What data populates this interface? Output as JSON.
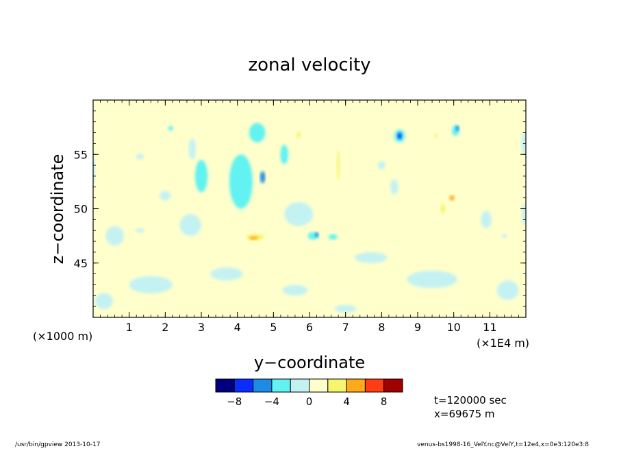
{
  "chart_data": {
    "type": "heatmap",
    "title": "zonal velocity",
    "xlabel": "y−coordinate",
    "ylabel": "z−coordinate",
    "x_scale_note": "(×1E4 m)",
    "y_scale_note": "(×1000 m)",
    "xlim": [
      0,
      12
    ],
    "ylim": [
      40,
      60
    ],
    "x_ticks": [
      1,
      2,
      3,
      4,
      5,
      6,
      7,
      8,
      9,
      10,
      11
    ],
    "y_ticks": [
      45,
      50,
      55
    ],
    "grid": false,
    "colorbar": {
      "levels": [
        -10,
        -8,
        -6,
        -4,
        -2,
        0,
        2,
        4,
        6,
        8,
        10
      ],
      "tick_labels": [
        "−8",
        "−4",
        "0",
        "4",
        "8"
      ],
      "tick_values": [
        -8,
        -4,
        0,
        4,
        8
      ],
      "colors": [
        "#00007f",
        "#0a2dff",
        "#1a8ce6",
        "#62f2f2",
        "#c4f2f2",
        "#ffffcc",
        "#f5f56e",
        "#ffaa1a",
        "#ff3c14",
        "#a00000"
      ]
    },
    "features": [
      {
        "y": 0.0,
        "z": 53.5,
        "w": 0.12,
        "h": 2.6,
        "value": -1
      },
      {
        "y": 0.85,
        "z": 58.2,
        "w": 0.35,
        "h": 0.6,
        "value": 1
      },
      {
        "y": 1.35,
        "z": 57.8,
        "w": 0.2,
        "h": 0.5,
        "value": 1
      },
      {
        "y": 1.3,
        "z": 54.8,
        "w": 0.22,
        "h": 0.55,
        "value": -1
      },
      {
        "y": 1.2,
        "z": 52.3,
        "w": 0.18,
        "h": 1.5,
        "value": 1
      },
      {
        "y": 1.3,
        "z": 51.4,
        "w": 0.18,
        "h": 0.6,
        "value": 1
      },
      {
        "y": 1.9,
        "z": 54.5,
        "w": 0.28,
        "h": 1.8,
        "value": 1
      },
      {
        "y": 2.15,
        "z": 57.4,
        "w": 0.15,
        "h": 0.45,
        "value": -3
      },
      {
        "y": 2.0,
        "z": 51.2,
        "w": 0.3,
        "h": 0.9,
        "value": -1
      },
      {
        "y": 1.3,
        "z": 48.0,
        "w": 0.25,
        "h": 0.4,
        "value": -1
      },
      {
        "y": 3.0,
        "z": 53.0,
        "w": 0.35,
        "h": 3.0,
        "value": -3
      },
      {
        "y": 2.75,
        "z": 55.5,
        "w": 0.2,
        "h": 2.0,
        "value": -1
      },
      {
        "y": 3.5,
        "z": 55.0,
        "w": 0.22,
        "h": 2.2,
        "value": 1
      },
      {
        "y": 3.55,
        "z": 48.2,
        "w": 0.45,
        "h": 0.9,
        "value": 1
      },
      {
        "y": 4.1,
        "z": 52.5,
        "w": 0.65,
        "h": 5.0,
        "value": -3
      },
      {
        "y": 4.55,
        "z": 57.0,
        "w": 0.45,
        "h": 1.8,
        "value": -3
      },
      {
        "y": 4.7,
        "z": 52.9,
        "w": 0.14,
        "h": 1.1,
        "value": -5
      },
      {
        "y": 4.05,
        "z": 57.5,
        "w": 0.18,
        "h": 1.4,
        "value": 1
      },
      {
        "y": 4.5,
        "z": 47.4,
        "w": 0.48,
        "h": 0.6,
        "value": 3
      },
      {
        "y": 4.45,
        "z": 47.3,
        "w": 0.25,
        "h": 0.3,
        "value": 5
      },
      {
        "y": 5.3,
        "z": 55.0,
        "w": 0.22,
        "h": 1.8,
        "value": -3
      },
      {
        "y": 5.7,
        "z": 56.8,
        "w": 0.12,
        "h": 0.6,
        "value": 3
      },
      {
        "y": 5.95,
        "z": 54.0,
        "w": 0.2,
        "h": 2.6,
        "value": 1
      },
      {
        "y": 6.1,
        "z": 47.5,
        "w": 0.3,
        "h": 0.7,
        "value": -3
      },
      {
        "y": 6.2,
        "z": 47.6,
        "w": 0.1,
        "h": 0.45,
        "value": -5
      },
      {
        "y": 6.65,
        "z": 47.4,
        "w": 0.25,
        "h": 0.5,
        "value": -3
      },
      {
        "y": 6.65,
        "z": 53.0,
        "w": 0.35,
        "h": 4.5,
        "value": 1
      },
      {
        "y": 6.8,
        "z": 54.0,
        "w": 0.08,
        "h": 2.8,
        "value": 3
      },
      {
        "y": 6.3,
        "z": 57.5,
        "w": 0.18,
        "h": 0.6,
        "value": 1
      },
      {
        "y": 7.45,
        "z": 55.8,
        "w": 0.35,
        "h": 1.2,
        "value": 1
      },
      {
        "y": 7.2,
        "z": 51.5,
        "w": 0.18,
        "h": 1.6,
        "value": 1
      },
      {
        "y": 8.0,
        "z": 54.0,
        "w": 0.2,
        "h": 0.8,
        "value": -1
      },
      {
        "y": 8.5,
        "z": 56.7,
        "w": 0.3,
        "h": 1.2,
        "value": -3
      },
      {
        "y": 8.5,
        "z": 56.7,
        "w": 0.12,
        "h": 0.6,
        "value": -7
      },
      {
        "y": 8.35,
        "z": 52.0,
        "w": 0.22,
        "h": 1.4,
        "value": -1
      },
      {
        "y": 8.0,
        "z": 49.8,
        "w": 0.35,
        "h": 0.9,
        "value": 1
      },
      {
        "y": 9.3,
        "z": 50.0,
        "w": 1.6,
        "h": 1.4,
        "value": 1
      },
      {
        "y": 8.3,
        "z": 48.2,
        "w": 1.2,
        "h": 0.9,
        "value": 1
      },
      {
        "y": 9.7,
        "z": 50.0,
        "w": 0.14,
        "h": 0.8,
        "value": 3
      },
      {
        "y": 9.95,
        "z": 51.0,
        "w": 0.14,
        "h": 0.5,
        "value": 5
      },
      {
        "y": 9.5,
        "z": 56.8,
        "w": 0.22,
        "h": 0.9,
        "value": 1
      },
      {
        "y": 9.5,
        "z": 56.7,
        "w": 0.08,
        "h": 0.5,
        "value": 3
      },
      {
        "y": 10.05,
        "z": 57.2,
        "w": 0.2,
        "h": 1.0,
        "value": -3
      },
      {
        "y": 10.1,
        "z": 57.4,
        "w": 0.1,
        "h": 0.5,
        "value": -5
      },
      {
        "y": 9.8,
        "z": 54.5,
        "w": 0.28,
        "h": 1.6,
        "value": 1
      },
      {
        "y": 11.0,
        "z": 55.0,
        "w": 0.4,
        "h": 2.2,
        "value": 1
      },
      {
        "y": 11.5,
        "z": 58.0,
        "w": 0.25,
        "h": 0.8,
        "value": 1
      },
      {
        "y": 11.95,
        "z": 56.0,
        "w": 0.15,
        "h": 2.0,
        "value": -1
      },
      {
        "y": 11.95,
        "z": 49.5,
        "w": 0.12,
        "h": 2.0,
        "value": -1
      },
      {
        "y": 10.9,
        "z": 49.0,
        "w": 0.3,
        "h": 1.6,
        "value": -1
      },
      {
        "y": 11.4,
        "z": 47.5,
        "w": 0.15,
        "h": 0.4,
        "value": -1
      },
      {
        "y": 1.6,
        "z": 43.0,
        "w": 1.2,
        "h": 1.6,
        "value": -1
      },
      {
        "y": 3.7,
        "z": 44.0,
        "w": 0.9,
        "h": 1.2,
        "value": -1
      },
      {
        "y": 5.6,
        "z": 42.5,
        "w": 0.7,
        "h": 1.0,
        "value": -1
      },
      {
        "y": 7.7,
        "z": 45.5,
        "w": 0.9,
        "h": 1.0,
        "value": -1
      },
      {
        "y": 9.4,
        "z": 43.5,
        "w": 1.4,
        "h": 1.6,
        "value": -1
      },
      {
        "y": 0.3,
        "z": 41.5,
        "w": 0.5,
        "h": 1.5,
        "value": -1
      },
      {
        "y": 11.5,
        "z": 42.5,
        "w": 0.6,
        "h": 1.8,
        "value": -1
      },
      {
        "y": 7.0,
        "z": 40.8,
        "w": 0.6,
        "h": 0.7,
        "value": -1
      },
      {
        "y": 2.7,
        "z": 48.5,
        "w": 0.6,
        "h": 2.0,
        "value": -1
      },
      {
        "y": 5.7,
        "z": 49.5,
        "w": 0.8,
        "h": 2.2,
        "value": -1
      },
      {
        "y": 0.6,
        "z": 47.5,
        "w": 0.5,
        "h": 1.8,
        "value": -1
      }
    ]
  },
  "info": {
    "time": "t=120000 sec",
    "position": "x=69675 m"
  },
  "footer": {
    "program": "/usr/bin/gpview   2013-10-17",
    "source": "venus-bs1998-16_VelY.nc@VelY,t=12e4,x=0e3:120e3:8"
  }
}
